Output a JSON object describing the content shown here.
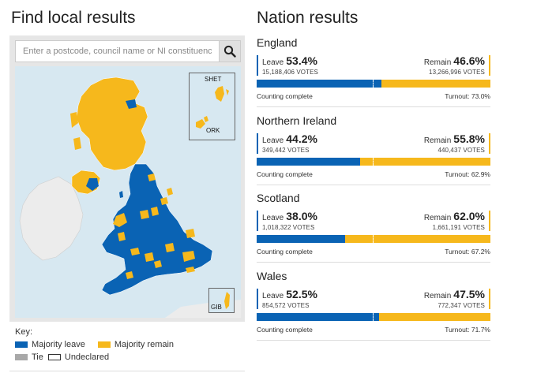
{
  "local": {
    "title": "Find local results",
    "search_placeholder": "Enter a postcode, council name or NI constituency",
    "insets": {
      "shet": "SHET",
      "ork": "ORK",
      "gib": "GIB"
    },
    "key": {
      "title": "Key:",
      "items": [
        {
          "label": "Majority leave",
          "color": "#0a63b4"
        },
        {
          "label": "Majority remain",
          "color": "#f6b81c"
        },
        {
          "label": "Tie",
          "color": "#a8a8a8"
        },
        {
          "label": "Undeclared",
          "color": "#ffffff"
        }
      ]
    }
  },
  "nations_title": "Nation results",
  "nations": [
    {
      "name": "England",
      "leave_label": "Leave",
      "leave_pct": "53.4%",
      "leave_votes": "15,188,406 VOTES",
      "remain_label": "Remain",
      "remain_pct": "46.6%",
      "remain_votes": "13,266,996 VOTES",
      "leave_share": 53.4,
      "status": "Counting complete",
      "turnout": "Turnout: 73.0%"
    },
    {
      "name": "Northern Ireland",
      "leave_label": "Leave",
      "leave_pct": "44.2%",
      "leave_votes": "349,442 VOTES",
      "remain_label": "Remain",
      "remain_pct": "55.8%",
      "remain_votes": "440,437 VOTES",
      "leave_share": 44.2,
      "status": "Counting complete",
      "turnout": "Turnout: 62.9%"
    },
    {
      "name": "Scotland",
      "leave_label": "Leave",
      "leave_pct": "38.0%",
      "leave_votes": "1,018,322 VOTES",
      "remain_label": "Remain",
      "remain_pct": "62.0%",
      "remain_votes": "1,661,191 VOTES",
      "leave_share": 38.0,
      "status": "Counting complete",
      "turnout": "Turnout: 67.2%"
    },
    {
      "name": "Wales",
      "leave_label": "Leave",
      "leave_pct": "52.5%",
      "leave_votes": "854,572 VOTES",
      "remain_label": "Remain",
      "remain_pct": "47.5%",
      "remain_votes": "772,347 VOTES",
      "leave_share": 52.5,
      "status": "Counting complete",
      "turnout": "Turnout: 71.7%"
    }
  ],
  "colors": {
    "leave": "#0a63b4",
    "remain": "#f6b81c",
    "tie": "#a8a8a8",
    "sea": "#d7e8f1",
    "land_other": "#ececec"
  }
}
